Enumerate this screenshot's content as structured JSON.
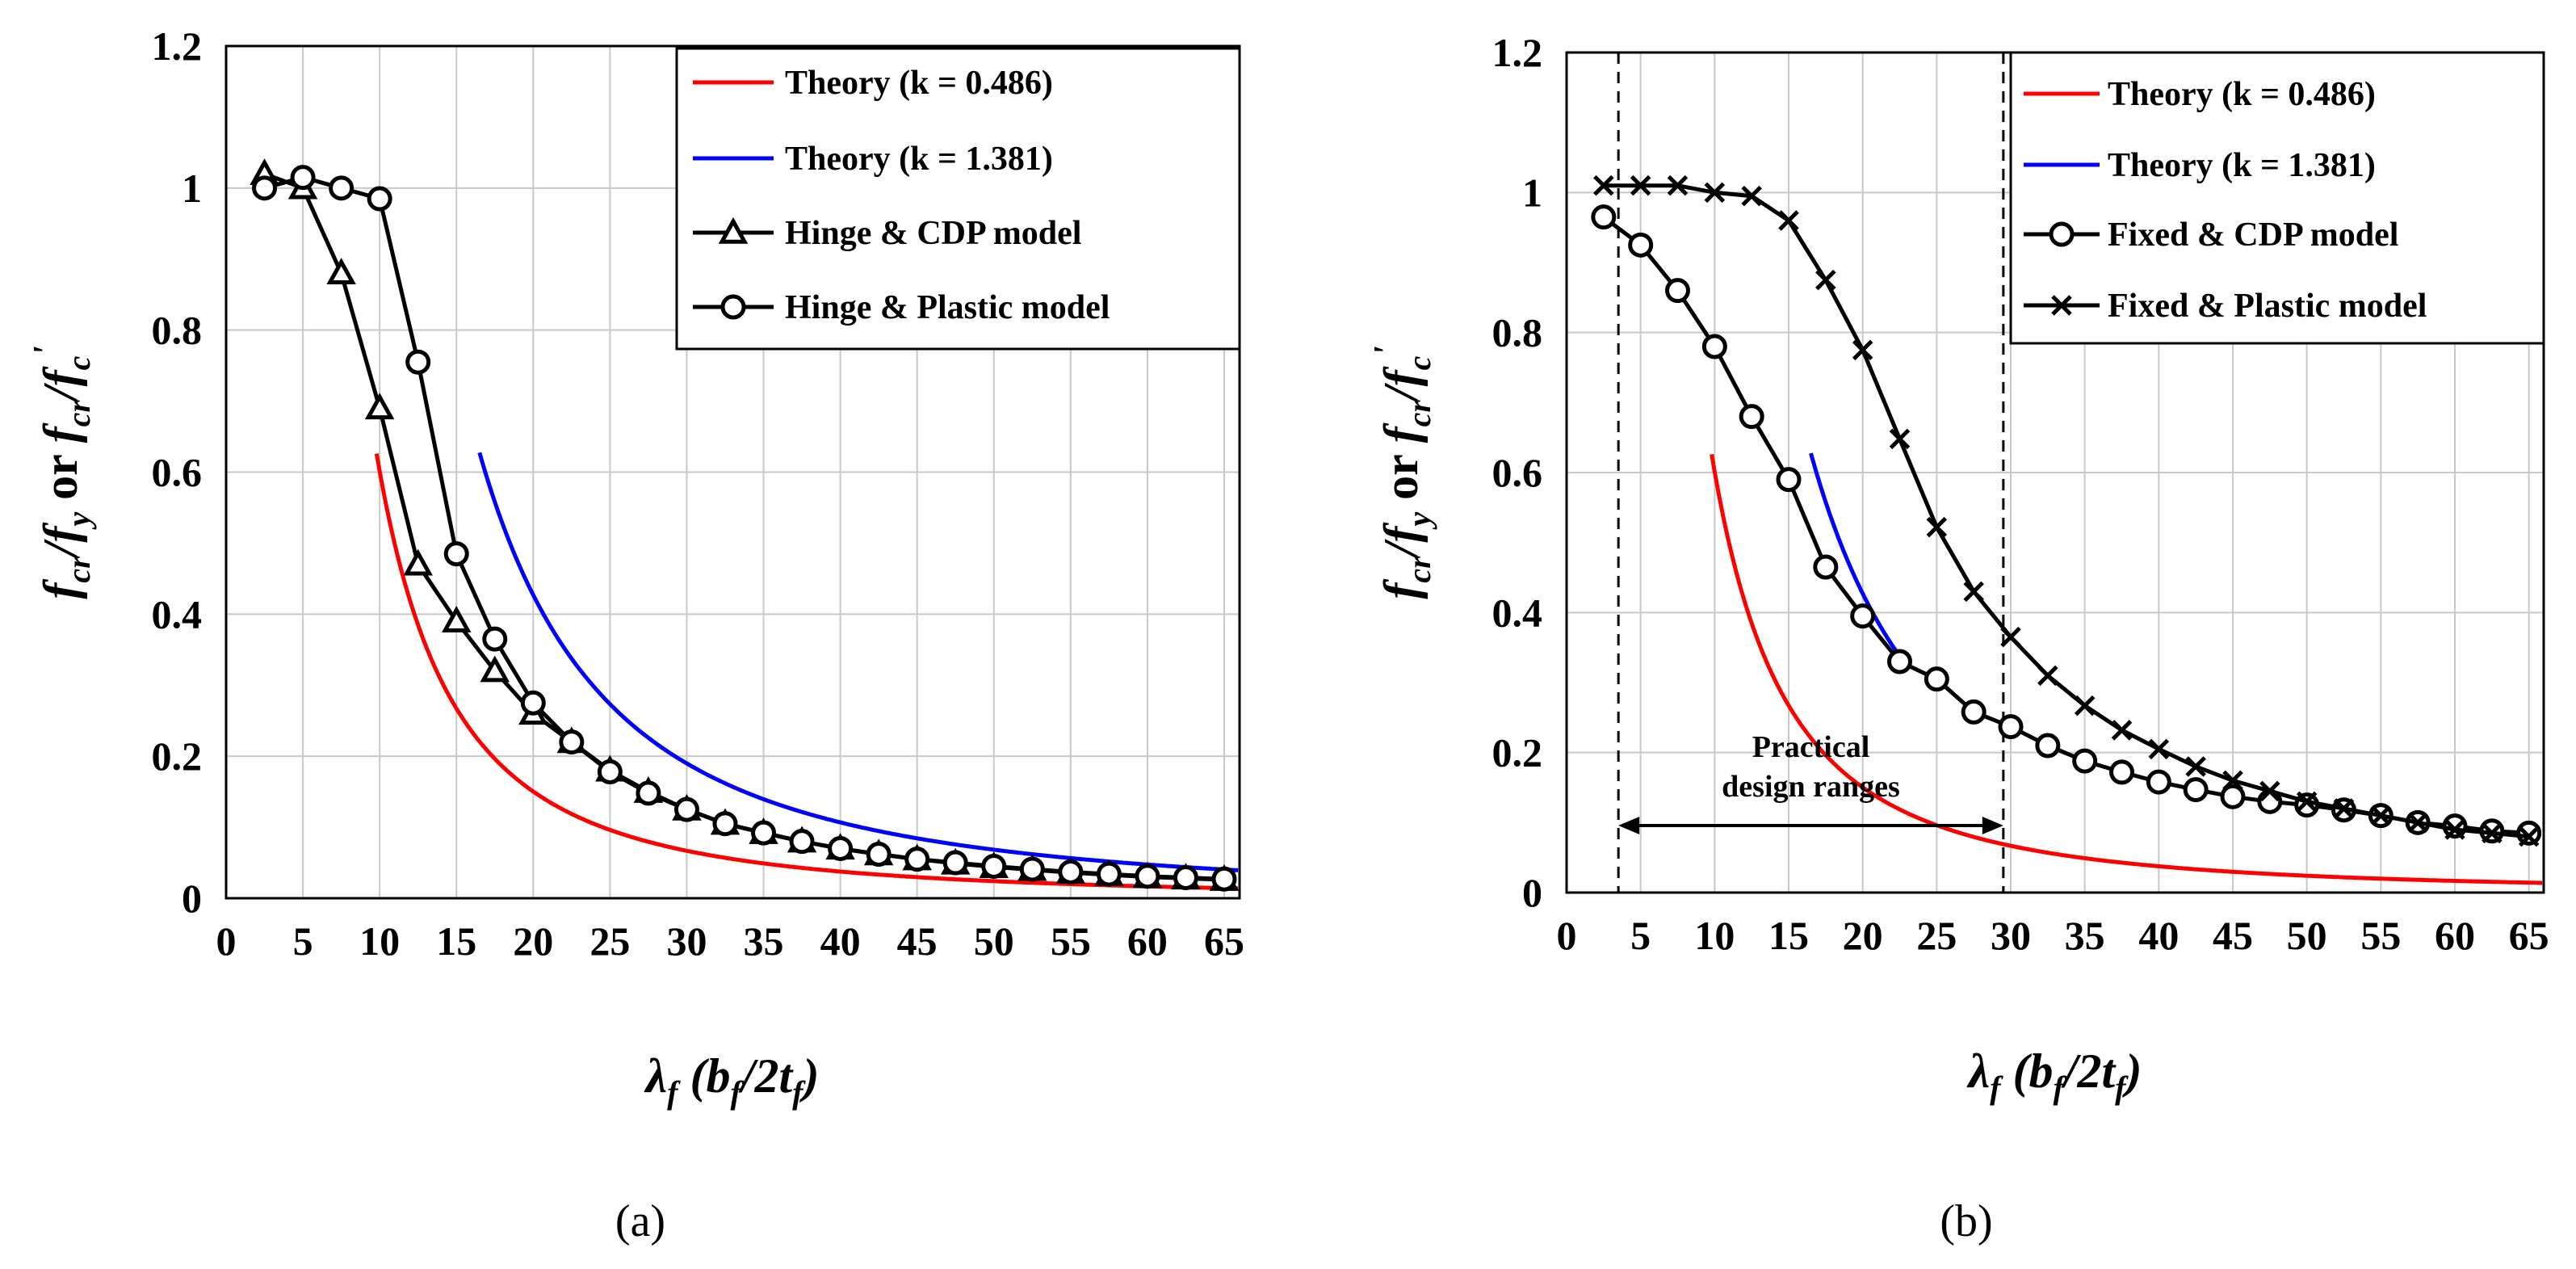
{
  "colors": {
    "theory_low": "#ff0000",
    "theory_high": "#0000ff",
    "model": "#000000",
    "grid": "#c8c8c8"
  },
  "chart_data": [
    {
      "type": "line",
      "panel_label": "(a)",
      "xlabel": "λf (bf/2tf)",
      "xlabel_parts": {
        "main": "λ",
        "main_sub": "f",
        "open": "(b",
        "b_sub": "f",
        "mid": "/2t",
        "t_sub": "f",
        "close": ")"
      },
      "ylabel": "fcr/fy or fcr/f'c",
      "ylabel_parts": {
        "t1": "f",
        "s1": "cr",
        "t2": "/",
        "t3": "f",
        "s2": "y",
        "t4": " or ",
        "t5": "f",
        "s3": "cr",
        "t6": "/",
        "t7": "f",
        "s4": "c",
        "prime": "'"
      },
      "xlim": [
        0,
        66
      ],
      "ylim": [
        0,
        1.2
      ],
      "xticks": [
        "0",
        "5",
        "10",
        "15",
        "20",
        "25",
        "30",
        "35",
        "40",
        "45",
        "50",
        "55",
        "60",
        "65"
      ],
      "yticks": [
        "0",
        "0.2",
        "0.4",
        "0.6",
        "0.8",
        "1",
        "1.2"
      ],
      "series": [
        {
          "name": "Theory (k = 0.486)",
          "color": "#ff0000",
          "marker": "none",
          "formula_k": 0.486,
          "x_range": [
            9.8,
            66
          ]
        },
        {
          "name": "Theory (k = 1.381)",
          "color": "#0000ff",
          "marker": "none",
          "formula_k": 1.381,
          "x_range": [
            16.5,
            66
          ]
        },
        {
          "name": "Hinge & CDP model",
          "color": "#000000",
          "marker": "triangle",
          "x": [
            2.5,
            5,
            7.5,
            10,
            12.5,
            15,
            17.5,
            20,
            22.5,
            25,
            27.5,
            30,
            32.5,
            35,
            37.5,
            40,
            42.5,
            45,
            47.5,
            50,
            52.5,
            55,
            57.5,
            60,
            62.5,
            65
          ],
          "y": [
            1.02,
            1.0,
            0.88,
            0.69,
            0.47,
            0.39,
            0.32,
            0.26,
            0.22,
            0.18,
            0.15,
            0.125,
            0.105,
            0.092,
            0.08,
            0.07,
            0.062,
            0.055,
            0.049,
            0.044,
            0.04,
            0.036,
            0.033,
            0.03,
            0.028,
            0.026
          ]
        },
        {
          "name": "Hinge & Plastic model",
          "color": "#000000",
          "marker": "circle",
          "x": [
            2.5,
            5,
            7.5,
            10,
            12.5,
            15,
            17.5,
            20,
            22.5,
            25,
            27.5,
            30,
            32.5,
            35,
            37.5,
            40,
            42.5,
            45,
            47.5,
            50,
            52.5,
            55,
            57.5,
            60,
            62.5,
            65
          ],
          "y": [
            1.0,
            1.015,
            1.0,
            0.985,
            0.755,
            0.485,
            0.365,
            0.275,
            0.22,
            0.178,
            0.148,
            0.125,
            0.105,
            0.092,
            0.08,
            0.07,
            0.062,
            0.055,
            0.05,
            0.045,
            0.041,
            0.037,
            0.034,
            0.031,
            0.029,
            0.027
          ]
        }
      ]
    },
    {
      "type": "line",
      "panel_label": "(b)",
      "xlabel": "λf (bf/2tf)",
      "xlabel_parts": {
        "main": "λ",
        "main_sub": "f",
        "open": "(b",
        "b_sub": "f",
        "mid": "/2t",
        "t_sub": "f",
        "close": ")"
      },
      "ylabel": "fcr/fy or fcr/f'c",
      "ylabel_parts": {
        "t1": "f",
        "s1": "cr",
        "t2": "/",
        "t3": "f",
        "s2": "y",
        "t4": " or ",
        "t5": "f",
        "s3": "cr",
        "t6": "/",
        "t7": "f",
        "s4": "c",
        "prime": "'"
      },
      "xlim": [
        0,
        66
      ],
      "ylim": [
        0,
        1.2
      ],
      "xticks": [
        "0",
        "5",
        "10",
        "15",
        "20",
        "25",
        "30",
        "35",
        "40",
        "45",
        "50",
        "55",
        "60",
        "65"
      ],
      "yticks": [
        "0",
        "0.2",
        "0.4",
        "0.6",
        "0.8",
        "1",
        "1.2"
      ],
      "annotation": {
        "line1": "Practical",
        "line2": "design ranges",
        "x_start": 3.5,
        "x_end": 29.5
      },
      "series": [
        {
          "name": "Theory (k = 0.486)",
          "color": "#ff0000",
          "marker": "none",
          "formula_k": 0.486,
          "x_range": [
            9.8,
            66
          ]
        },
        {
          "name": "Theory (k = 1.381)",
          "color": "#0000ff",
          "marker": "none",
          "formula_k": 1.381,
          "x_range": [
            16.5,
            22.5
          ]
        },
        {
          "name": "Fixed & CDP model",
          "color": "#000000",
          "marker": "circle",
          "x": [
            2.5,
            5,
            7.5,
            10,
            12.5,
            15,
            17.5,
            20,
            22.5,
            25,
            27.5,
            30,
            32.5,
            35,
            37.5,
            40,
            42.5,
            45,
            47.5,
            50,
            52.5,
            55,
            57.5,
            60,
            62.5,
            65
          ],
          "y": [
            0.965,
            0.925,
            0.86,
            0.78,
            0.68,
            0.59,
            0.465,
            0.395,
            0.33,
            0.305,
            0.258,
            0.237,
            0.21,
            0.188,
            0.172,
            0.158,
            0.147,
            0.137,
            0.13,
            0.125,
            0.118,
            0.11,
            0.1,
            0.095,
            0.088,
            0.085
          ]
        },
        {
          "name": "Fixed & Plastic model",
          "color": "#000000",
          "marker": "x",
          "x": [
            2.5,
            5,
            7.5,
            10,
            12.5,
            15,
            17.5,
            20,
            22.5,
            25,
            27.5,
            30,
            32.5,
            35,
            37.5,
            40,
            42.5,
            45,
            47.5,
            50,
            52.5,
            55,
            57.5,
            60,
            62.5,
            65
          ],
          "y": [
            1.01,
            1.01,
            1.01,
            1.0,
            0.995,
            0.96,
            0.875,
            0.775,
            0.648,
            0.522,
            0.43,
            0.365,
            0.31,
            0.267,
            0.232,
            0.205,
            0.18,
            0.16,
            0.145,
            0.13,
            0.12,
            0.11,
            0.1,
            0.09,
            0.085,
            0.08
          ]
        }
      ]
    }
  ]
}
